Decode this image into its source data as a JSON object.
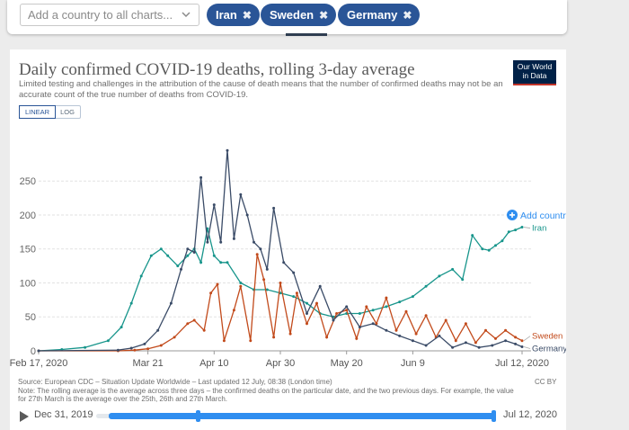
{
  "controls": {
    "search_placeholder": "Add a country to all charts...",
    "chips": [
      {
        "label": "Iran"
      },
      {
        "label": "Sweden"
      },
      {
        "label": "Germany"
      }
    ],
    "chip_remove_glyph": "✖"
  },
  "header": {
    "title": "Daily confirmed COVID-19 deaths, rolling 3-day average",
    "subtitle": "Limited testing and challenges in the attribution of the cause of death means that the number of confirmed deaths may not be an accurate count of the true number of deaths from COVID-19.",
    "logo_line1": "Our World",
    "logo_line2": "in Data",
    "scale_options": [
      "LINEAR",
      "LOG"
    ],
    "scale_active": "LINEAR"
  },
  "chart_data": {
    "type": "line",
    "x_axis": {
      "type": "date",
      "range": [
        "2020-02-17",
        "2020-07-12"
      ],
      "tick_labels": [
        "Feb 17, 2020",
        "Mar 21",
        "Apr 10",
        "Apr 30",
        "May 20",
        "Jun 9",
        "Jul 12, 2020"
      ]
    },
    "y_axis": {
      "range": [
        0,
        250
      ],
      "ticks": [
        0,
        50,
        100,
        150,
        200,
        250
      ],
      "gridlines": true
    },
    "add_country_label": "Add country",
    "series": [
      {
        "name": "Iran",
        "color": "#17958b",
        "x": [
          "2020-02-17",
          "2020-02-24",
          "2020-03-02",
          "2020-03-09",
          "2020-03-13",
          "2020-03-16",
          "2020-03-19",
          "2020-03-22",
          "2020-03-25",
          "2020-03-27",
          "2020-03-30",
          "2020-04-02",
          "2020-04-04",
          "2020-04-06",
          "2020-04-08",
          "2020-04-10",
          "2020-04-12",
          "2020-04-14",
          "2020-04-18",
          "2020-04-22",
          "2020-04-26",
          "2020-04-30",
          "2020-05-04",
          "2020-05-08",
          "2020-05-12",
          "2020-05-16",
          "2020-05-20",
          "2020-05-24",
          "2020-05-28",
          "2020-06-01",
          "2020-06-05",
          "2020-06-09",
          "2020-06-13",
          "2020-06-17",
          "2020-06-21",
          "2020-06-24",
          "2020-06-27",
          "2020-06-30",
          "2020-07-02",
          "2020-07-04",
          "2020-07-06",
          "2020-07-08",
          "2020-07-10",
          "2020-07-12"
        ],
        "y": [
          0,
          2,
          5,
          15,
          35,
          70,
          110,
          140,
          150,
          140,
          125,
          140,
          150,
          130,
          180,
          140,
          130,
          130,
          100,
          90,
          90,
          85,
          80,
          70,
          55,
          50,
          55,
          55,
          60,
          65,
          72,
          80,
          95,
          110,
          120,
          105,
          170,
          150,
          148,
          155,
          162,
          175,
          178,
          182
        ]
      },
      {
        "name": "Sweden",
        "color": "#c24a1b",
        "x": [
          "2020-02-17",
          "2020-03-12",
          "2020-03-17",
          "2020-03-21",
          "2020-03-25",
          "2020-03-29",
          "2020-04-02",
          "2020-04-04",
          "2020-04-07",
          "2020-04-09",
          "2020-04-11",
          "2020-04-13",
          "2020-04-16",
          "2020-04-18",
          "2020-04-21",
          "2020-04-23",
          "2020-04-25",
          "2020-04-28",
          "2020-04-30",
          "2020-05-03",
          "2020-05-05",
          "2020-05-08",
          "2020-05-11",
          "2020-05-14",
          "2020-05-17",
          "2020-05-20",
          "2020-05-23",
          "2020-05-26",
          "2020-05-29",
          "2020-06-01",
          "2020-06-04",
          "2020-06-07",
          "2020-06-10",
          "2020-06-13",
          "2020-06-16",
          "2020-06-19",
          "2020-06-22",
          "2020-06-25",
          "2020-06-28",
          "2020-07-01",
          "2020-07-04",
          "2020-07-07",
          "2020-07-10",
          "2020-07-12"
        ],
        "y": [
          0,
          0,
          1,
          3,
          8,
          20,
          40,
          45,
          30,
          85,
          98,
          15,
          60,
          95,
          15,
          142,
          105,
          20,
          100,
          25,
          85,
          40,
          70,
          20,
          55,
          60,
          18,
          65,
          40,
          78,
          30,
          58,
          25,
          52,
          20,
          45,
          15,
          40,
          12,
          30,
          18,
          30,
          20,
          15
        ]
      },
      {
        "name": "Germany",
        "color": "#3a4b67",
        "x": [
          "2020-02-17",
          "2020-03-12",
          "2020-03-16",
          "2020-03-20",
          "2020-03-24",
          "2020-03-28",
          "2020-03-31",
          "2020-04-02",
          "2020-04-04",
          "2020-04-06",
          "2020-04-08",
          "2020-04-10",
          "2020-04-12",
          "2020-04-14",
          "2020-04-16",
          "2020-04-18",
          "2020-04-20",
          "2020-04-22",
          "2020-04-24",
          "2020-04-26",
          "2020-04-28",
          "2020-05-01",
          "2020-05-04",
          "2020-05-08",
          "2020-05-12",
          "2020-05-16",
          "2020-05-20",
          "2020-05-24",
          "2020-05-28",
          "2020-06-01",
          "2020-06-05",
          "2020-06-09",
          "2020-06-13",
          "2020-06-17",
          "2020-06-21",
          "2020-06-25",
          "2020-06-29",
          "2020-07-03",
          "2020-07-07",
          "2020-07-10",
          "2020-07-12"
        ],
        "y": [
          0,
          1,
          4,
          10,
          30,
          70,
          120,
          150,
          145,
          255,
          160,
          215,
          160,
          295,
          165,
          230,
          200,
          160,
          150,
          120,
          210,
          130,
          115,
          55,
          95,
          45,
          65,
          35,
          40,
          30,
          22,
          15,
          8,
          22,
          5,
          12,
          5,
          8,
          15,
          10,
          6
        ]
      }
    ]
  },
  "footer": {
    "source": "Source: European CDC – Situation Update Worldwide – Last updated 12 July, 08:38 (London time)",
    "note": "Note: The rolling average is the average across three days – the confirmed deaths on the particular date, and the two previous days. For example, the value for 27th March is the average over the 25th, 26th and 27th March.",
    "license": "CC BY"
  },
  "timeline": {
    "start_label": "Dec 31, 2019",
    "end_label": "Jul 12, 2020"
  }
}
